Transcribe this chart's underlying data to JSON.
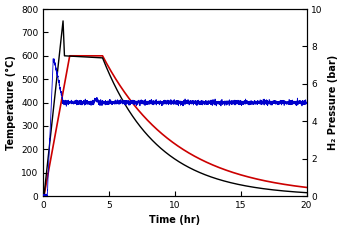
{
  "title": "",
  "xlabel": "Time (hr)",
  "ylabel_left": "Temperature (°C)",
  "ylabel_right": "H₂ Pressure (bar)",
  "xlim": [
    0,
    20
  ],
  "ylim_left": [
    0,
    800
  ],
  "ylim_right": [
    0,
    10
  ],
  "xticks": [
    0,
    5,
    10,
    15,
    20
  ],
  "yticks_left": [
    0,
    100,
    200,
    300,
    400,
    500,
    600,
    700,
    800
  ],
  "yticks_right": [
    0,
    2,
    4,
    6,
    8,
    10
  ],
  "background_color": "#ffffff",
  "line_colors": {
    "black": "#000000",
    "red": "#cc0000",
    "blue": "#0000cc"
  },
  "line_widths": {
    "black": 1.0,
    "red": 1.2,
    "blue": 0.6
  },
  "blue_noise_std": 0.06,
  "blue_steady_bar": 5.0,
  "black_spike": 750,
  "black_hold": 600,
  "red_hold": 600,
  "hold_end": 4.5,
  "black_decay_rate": 0.24,
  "red_decay_rate": 0.18
}
